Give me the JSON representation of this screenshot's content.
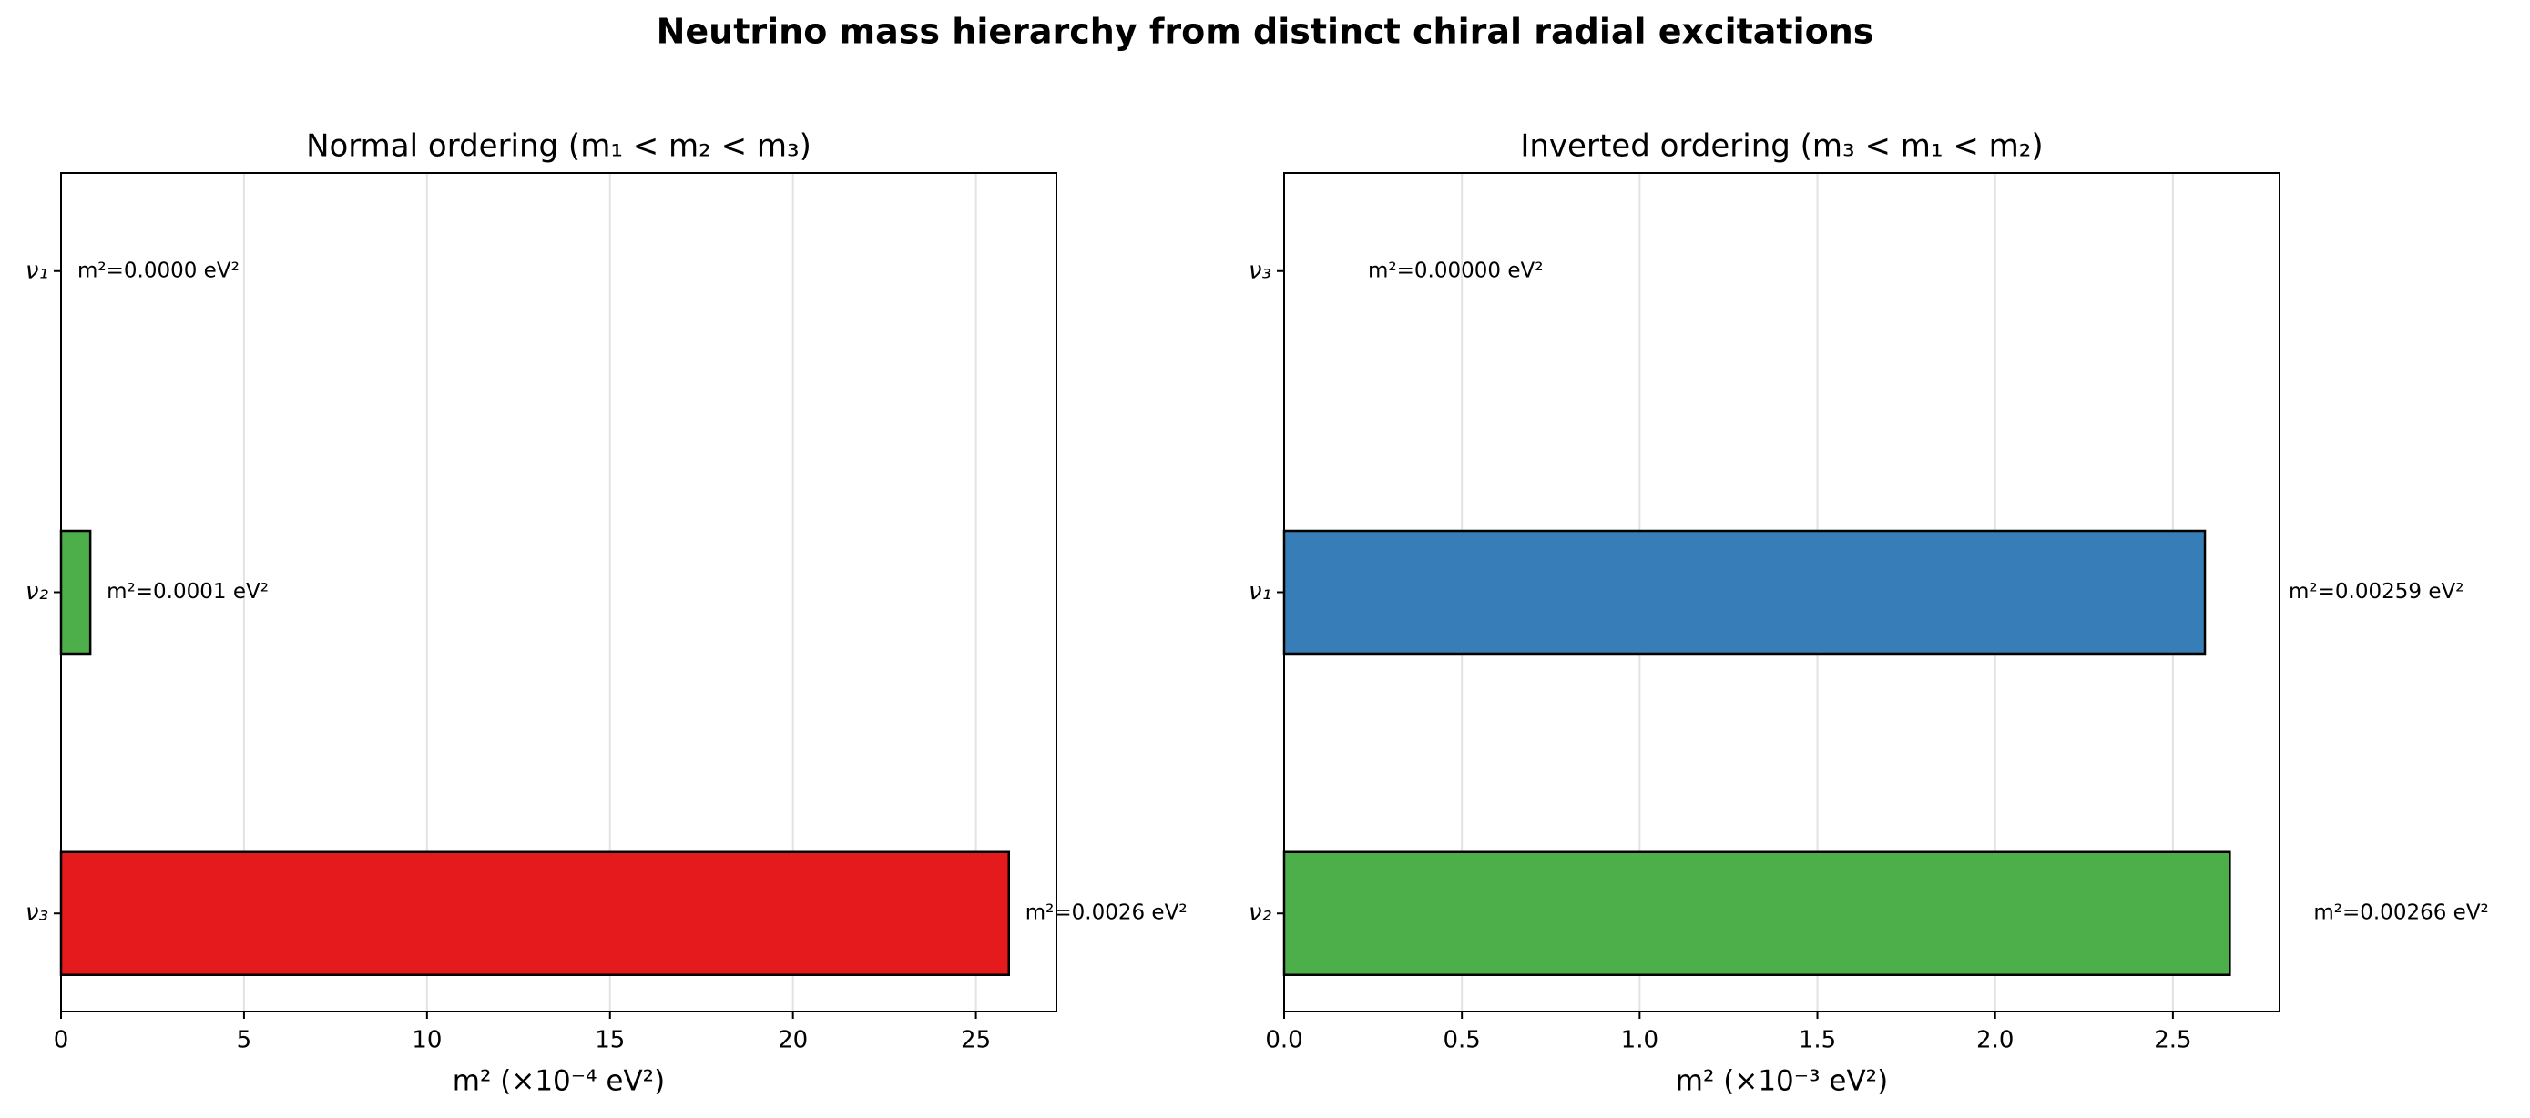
{
  "title": "Neutrino mass hierarchy from distinct chiral radial excitations",
  "chart_data": [
    {
      "type": "barh",
      "title": "Normal ordering  (m₁ < m₂ < m₃)",
      "categories": [
        "ν₁",
        "ν₂",
        "ν₃"
      ],
      "values": [
        0,
        0.8,
        25.9
      ],
      "value_labels": [
        "m²=0.0000 eV²",
        "m²=0.0001 eV²",
        "m²=0.0026 eV²"
      ],
      "colors": [
        "#377eb8",
        "#4daf4a",
        "#e41a1c"
      ],
      "xlabel": "m²  (×10⁻⁴ eV²)",
      "xlim": [
        0,
        27.2
      ],
      "xticks": [
        0,
        5,
        10,
        15,
        20,
        25
      ],
      "grid": true
    },
    {
      "type": "barh",
      "title": "Inverted ordering  (m₃ < m₁ < m₂)",
      "categories": [
        "ν₃",
        "ν₁",
        "ν₂"
      ],
      "values": [
        0,
        2.59,
        2.66
      ],
      "value_labels": [
        "m²=0.00000 eV²",
        "m²=0.00259 eV²",
        "m²=0.00266 eV²"
      ],
      "colors": [
        "#e41a1c",
        "#377eb8",
        "#4daf4a"
      ],
      "xlabel": "m²  (×10⁻³ eV²)",
      "xlim": [
        0,
        2.8
      ],
      "xticks": [
        {
          "value": 0,
          "label": "0.0"
        },
        0.5,
        {
          "value": 1,
          "label": "1.0"
        },
        1.5,
        {
          "value": 2,
          "label": "2.0"
        },
        2.5
      ],
      "grid": true
    }
  ]
}
